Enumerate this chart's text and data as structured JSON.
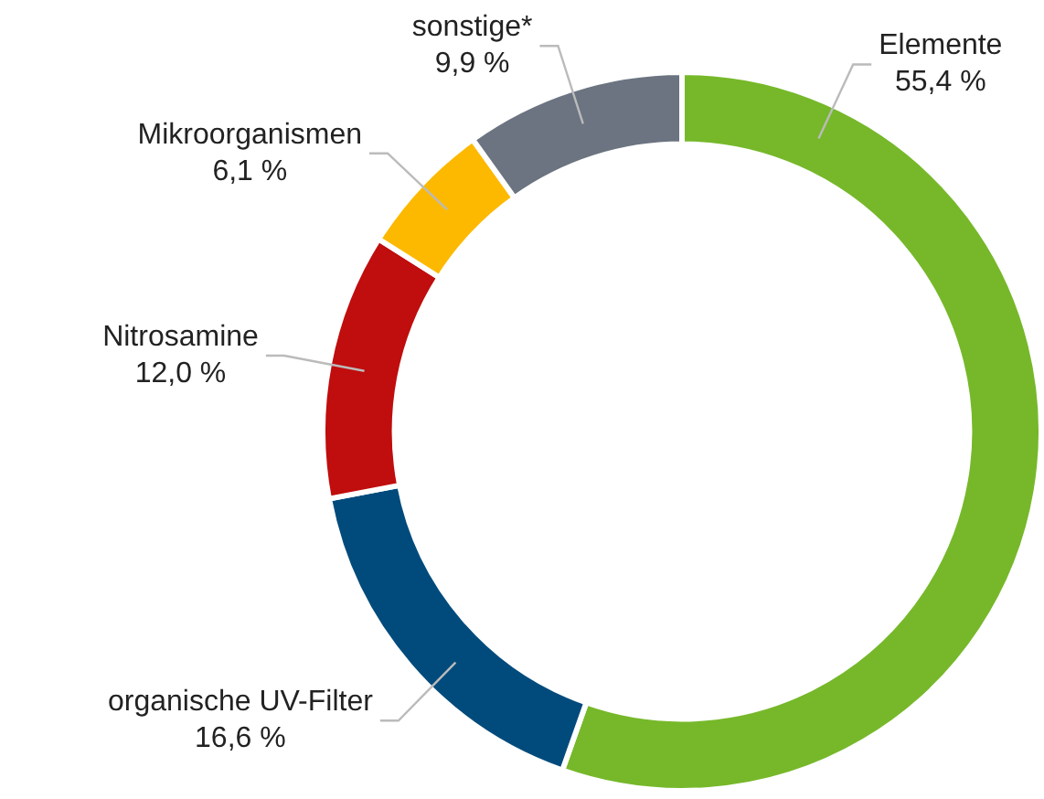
{
  "chart_data": {
    "type": "donut",
    "categories": [
      "Elemente",
      "organische UV-Filter",
      "Nitrosamine",
      "Mikroorganismen",
      "sonstige*"
    ],
    "values": [
      55.4,
      16.6,
      12.0,
      6.1,
      9.9
    ],
    "value_labels": [
      "55,4 %",
      "16,6 %",
      "12,0 %",
      "6,1 %",
      "9,9 %"
    ],
    "colors": [
      "#76b82a",
      "#004b7c",
      "#c00d0d",
      "#fdb900",
      "#6b7480"
    ],
    "legend": false
  }
}
